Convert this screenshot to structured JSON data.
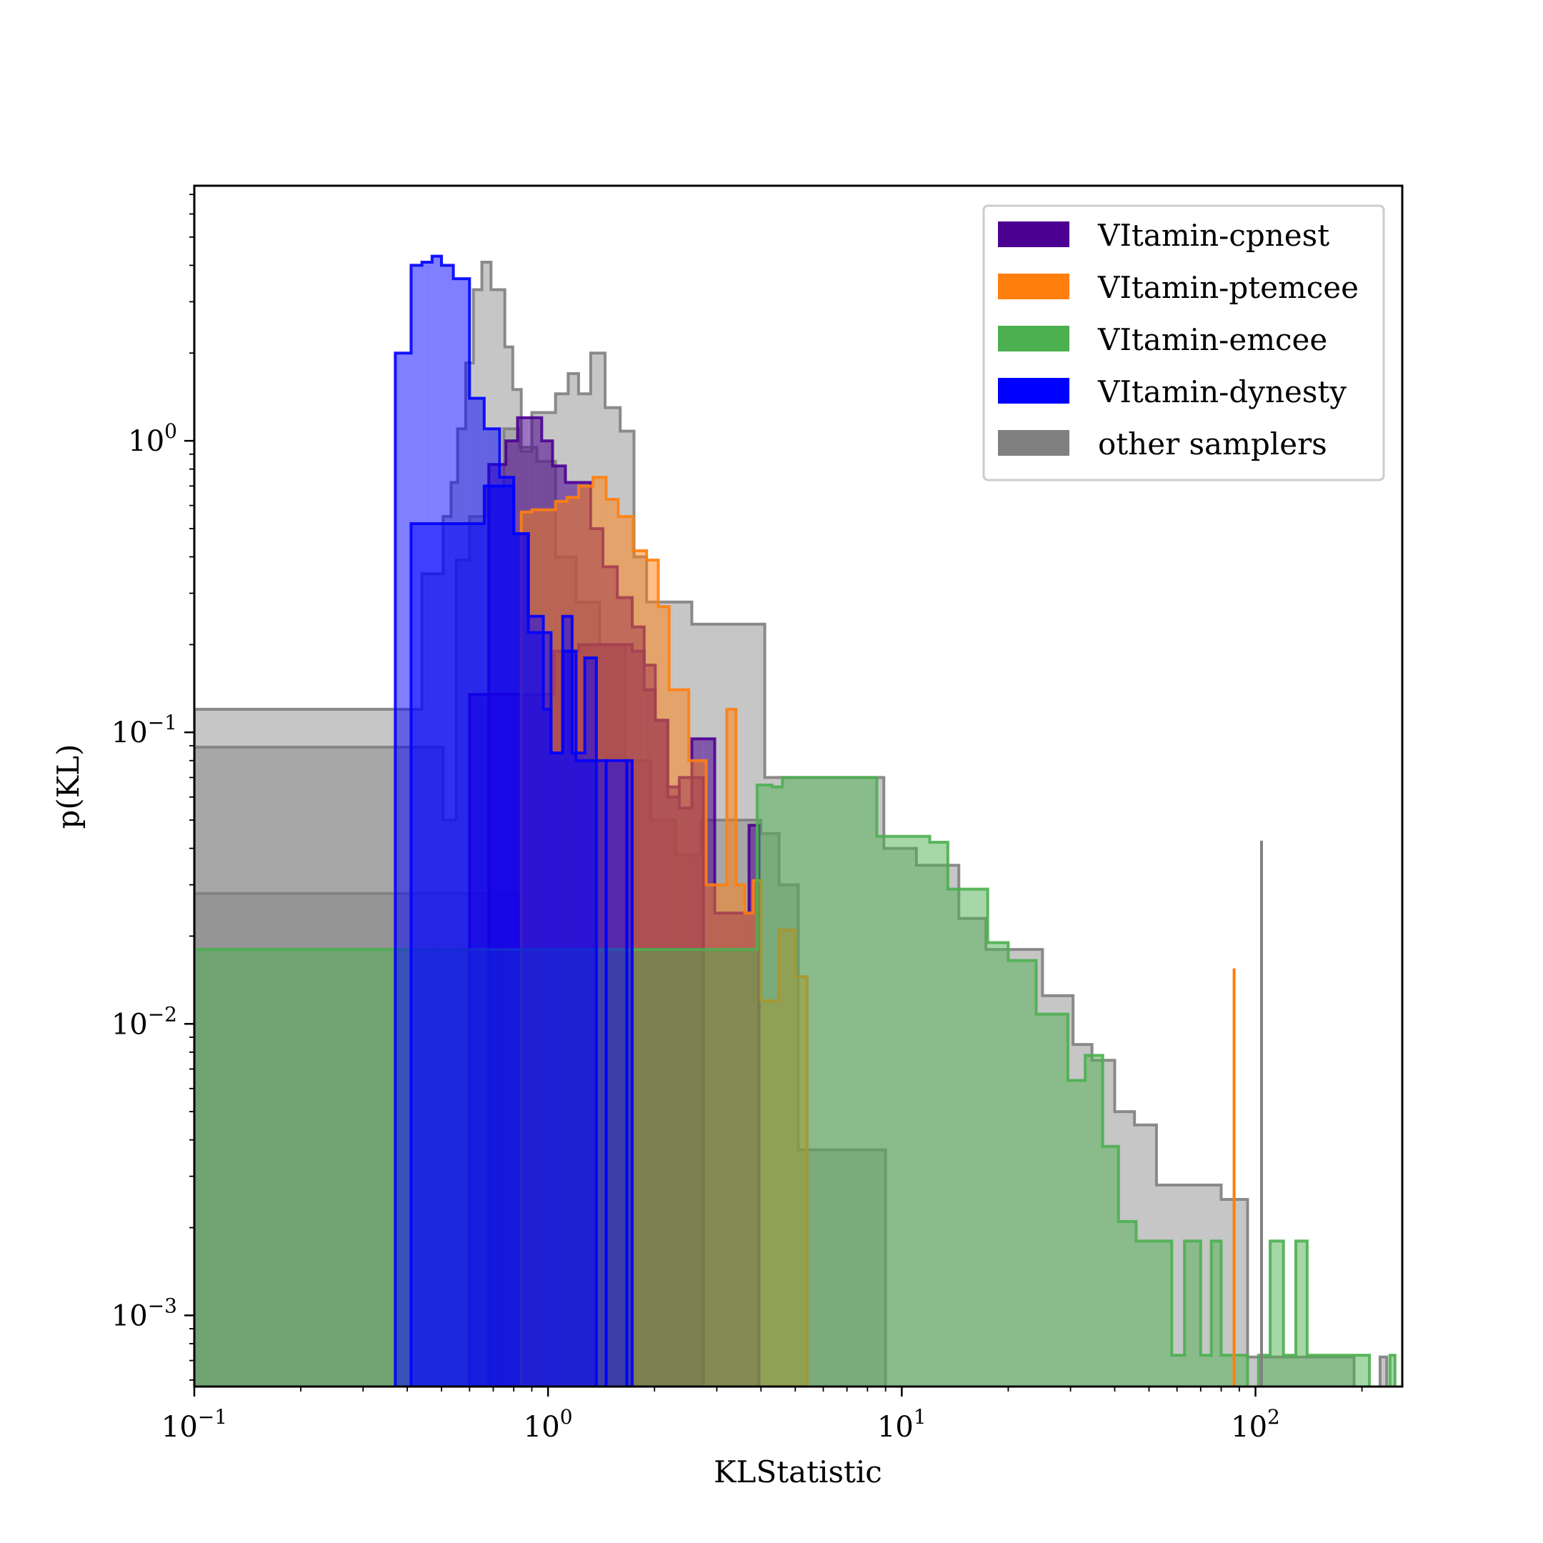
{
  "chart_data": {
    "type": "histogram",
    "title": "",
    "xlabel": "KLStatistic",
    "ylabel": "p(KL)",
    "xscale": "log",
    "yscale": "log",
    "xlim": [
      0.1,
      260
    ],
    "ylim": [
      0.00057,
      7.5
    ],
    "x_ticks": [
      {
        "value": 0.1,
        "base": "10",
        "exp": "−1"
      },
      {
        "value": 1,
        "base": "10",
        "exp": "0"
      },
      {
        "value": 10,
        "base": "10",
        "exp": "1"
      },
      {
        "value": 100,
        "base": "10",
        "exp": "2"
      }
    ],
    "y_ticks": [
      {
        "value": 1,
        "base": "10",
        "exp": "0"
      },
      {
        "value": 0.1,
        "base": "10",
        "exp": "−1"
      },
      {
        "value": 0.01,
        "base": "10",
        "exp": "−2"
      },
      {
        "value": 0.001,
        "base": "10",
        "exp": "−3"
      }
    ],
    "grid": false,
    "legend_position": "top-right",
    "legend": [
      {
        "label": "VItamin-cpnest",
        "color": "#4b0092"
      },
      {
        "label": "VItamin-ptemcee",
        "color": "#ff7f0e"
      },
      {
        "label": "VItamin-emcee",
        "color": "#4caf50"
      },
      {
        "label": "VItamin-dynesty",
        "color": "#0000ff"
      },
      {
        "label": "other samplers",
        "color": "#808080"
      }
    ],
    "series": [
      {
        "name": "other samplers",
        "color": "#808080",
        "fill_opacity": 0.45,
        "edges": [
          0.1,
          0.415,
          0.44,
          0.505,
          0.532,
          0.555,
          0.585,
          0.615,
          0.65,
          0.69,
          0.72,
          0.755,
          0.795,
          0.84,
          0.9,
          0.97,
          1.05,
          1.14,
          1.22,
          1.32,
          1.45,
          1.6,
          1.75,
          1.9,
          2.05,
          2.3,
          2.55,
          3.05,
          3.45,
          4.1,
          5.4,
          8.9,
          9.6,
          11.0,
          12.5,
          14.5,
          17.3,
          21.5,
          25.0,
          30.5,
          34.5,
          40.0,
          45.5,
          52.5,
          56.0,
          60.0,
          75.0,
          80.0,
          95.0,
          101.0,
          108.0,
          112.0,
          120.0,
          135.0,
          150.0,
          170.0,
          190.0,
          225.0,
          235.0,
          260.0
        ],
        "values": [
          0.12,
          0.12,
          0.35,
          0.55,
          0.72,
          1.1,
          1.85,
          3.3,
          4.1,
          3.3,
          3.3,
          2.1,
          1.5,
          0.92,
          1.25,
          1.25,
          1.45,
          1.7,
          1.45,
          2.0,
          1.3,
          1.08,
          0.4,
          0.28,
          0.28,
          0.28,
          0.235,
          0.235,
          0.235,
          0.07,
          0.07,
          0.04,
          0.04,
          0.035,
          0.035,
          0.023,
          0.018,
          0.018,
          0.0125,
          0.0085,
          0.0075,
          0.005,
          0.0045,
          0.0028,
          0.0028,
          0.0028,
          0.0028,
          0.0025,
          0.00072,
          0.00072,
          0.00072,
          0.00072,
          0.00072,
          0.00072,
          0.00072,
          0.00072,
          0.0,
          0.00072,
          0.0
        ]
      },
      {
        "name": "other samplers",
        "color": "#808080",
        "fill_opacity": 0.45,
        "edges": [
          0.1,
          0.42,
          0.44,
          0.505,
          0.55,
          0.6,
          0.67,
          0.75,
          0.83,
          0.93,
          1.05,
          1.2,
          1.4,
          1.65,
          1.95,
          2.3,
          2.7,
          3.1,
          3.5,
          4.0,
          4.5,
          5.1,
          5.4,
          5.9,
          6.6,
          7.0,
          8.0,
          9.0
        ],
        "values": [
          0.089,
          0.089,
          0.089,
          0.05,
          0.39,
          0.55,
          0.7,
          1.1,
          0.95,
          0.85,
          0.4,
          0.28,
          0.2,
          0.08,
          0.05,
          0.038,
          0.05,
          0.05,
          0.05,
          0.045,
          0.03,
          0.0037,
          0.0037,
          0.0037,
          0.0037,
          0.0037,
          0.0037
        ]
      },
      {
        "name": "other samplers",
        "color": "#808080",
        "fill_opacity": 0.45,
        "edges": [
          0.1,
          0.43,
          0.47,
          0.51,
          0.56,
          0.62,
          0.68,
          0.75,
          0.83,
          0.9,
          0.97
        ],
        "values": [
          0.028,
          0.028,
          0.028,
          0.028,
          0.028,
          0.028,
          0.028,
          0.028,
          0.028,
          0.028
        ]
      },
      {
        "name": "VItamin-cpnest",
        "color": "#4b0092",
        "fill_opacity": 0.55,
        "edges": [
          0.6,
          0.64,
          0.68,
          0.72,
          0.77,
          0.83,
          0.89,
          0.96,
          1.04,
          1.13,
          1.22,
          1.32,
          1.43,
          1.57,
          1.73,
          1.87,
          2.01,
          2.18,
          2.35,
          2.55,
          2.75,
          2.96,
          3.2,
          3.45,
          3.7,
          3.95
        ],
        "values": [
          0.135,
          0.135,
          0.135,
          0.135,
          0.135,
          0.135,
          0.135,
          0.135,
          0.19,
          0.19,
          0.2,
          0.2,
          0.2,
          0.2,
          0.19,
          0.14,
          0.11,
          0.065,
          0.055,
          0.095,
          0.095,
          0.024,
          0.024,
          0.024,
          0.048
        ]
      },
      {
        "name": "VItamin-cpnest",
        "color": "#4b0092",
        "fill_opacity": 0.55,
        "edges": [
          0.68,
          0.76,
          0.82,
          0.88,
          0.96,
          1.03,
          1.12,
          1.22,
          1.32,
          1.43,
          1.57,
          1.73,
          1.87,
          2.01,
          2.18,
          2.35,
          2.55,
          2.75
        ],
        "values": [
          0.83,
          1.0,
          1.2,
          1.2,
          1.0,
          0.82,
          0.72,
          0.72,
          0.5,
          0.37,
          0.29,
          0.23,
          0.17,
          0.11,
          0.06,
          0.07,
          0.07
        ]
      },
      {
        "name": "VItamin-ptemcee",
        "color": "#ff7f0e",
        "fill_opacity": 0.5,
        "edges": [
          0.84,
          0.9,
          0.97,
          1.05,
          1.13,
          1.22,
          1.34,
          1.46,
          1.58,
          1.74,
          1.9,
          2.05,
          2.2,
          2.5,
          2.8,
          3.0,
          3.2,
          3.4,
          3.6,
          3.8,
          4.0,
          4.5,
          5.0,
          5.4
        ],
        "values": [
          0.57,
          0.58,
          0.58,
          0.62,
          0.64,
          0.7,
          0.75,
          0.63,
          0.55,
          0.42,
          0.39,
          0.27,
          0.14,
          0.08,
          0.03,
          0.03,
          0.12,
          0.03,
          0.024,
          0.031,
          0.012,
          0.021,
          0.0145
        ]
      },
      {
        "name": "VItamin-emcee",
        "color": "#4caf50",
        "fill_opacity": 0.5,
        "edges": [
          0.1,
          3.9,
          4.3,
          4.6,
          8.5,
          12.0,
          13.5,
          17.5,
          20.0,
          24.0,
          29.5,
          33.0,
          37.0,
          41.0,
          46.0,
          52.0,
          58.0,
          63.0,
          70.0,
          75.0,
          80.0,
          88.0,
          95.0,
          102.0,
          110.0,
          120.0,
          130.0,
          140.0,
          160.0,
          175.0,
          190.0,
          210.0,
          240.0,
          248.0,
          255.0
        ],
        "values": [
          0.018,
          0.066,
          0.065,
          0.07,
          0.044,
          0.042,
          0.029,
          0.019,
          0.0165,
          0.0108,
          0.0064,
          0.0078,
          0.0038,
          0.0021,
          0.0018,
          0.0018,
          0.00073,
          0.0018,
          0.00073,
          0.0018,
          0.00073,
          0.00073,
          0.0,
          0.00073,
          0.0018,
          0.00073,
          0.0018,
          0.00073,
          0.00073,
          0.00073,
          0.00073,
          0.0,
          0.00073,
          0.0
        ]
      },
      {
        "name": "VItamin-dynesty",
        "color": "#0000ff",
        "fill_opacity": 0.5,
        "edges": [
          0.37,
          0.41,
          0.44,
          0.47,
          0.5,
          0.54,
          0.6,
          0.66,
          0.73,
          0.8,
          0.88,
          0.94,
          0.97,
          1.02,
          1.1,
          1.17,
          1.27,
          1.37,
          1.46,
          1.67,
          1.72
        ],
        "values": [
          2.0,
          4.0,
          4.1,
          4.3,
          4.0,
          3.6,
          1.4,
          1.1,
          0.75,
          0.48,
          0.25,
          0.25,
          0.12,
          0.085,
          0.25,
          0.085,
          0.18,
          0.0,
          0.08,
          0.0
        ]
      },
      {
        "name": "VItamin-dynesty",
        "color": "#0000ff",
        "fill_opacity": 0.5,
        "edges": [
          0.41,
          0.6,
          0.66,
          0.73,
          0.8,
          0.88,
          0.94,
          1.02,
          1.1,
          1.2,
          1.31,
          1.46,
          1.67,
          1.73
        ],
        "values": [
          0.52,
          0.52,
          0.7,
          0.7,
          0.48,
          0.22,
          0.22,
          0.085,
          0.19,
          0.08,
          0.08,
          0.0,
          0.08
        ]
      }
    ],
    "vlines": [
      {
        "name": "VItamin-ptemcee",
        "color": "#ff7f0e",
        "x": 87.0,
        "y": 0.0155
      },
      {
        "name": "other samplers",
        "color": "#808080",
        "x": 104.0,
        "y": 0.0425
      }
    ]
  }
}
